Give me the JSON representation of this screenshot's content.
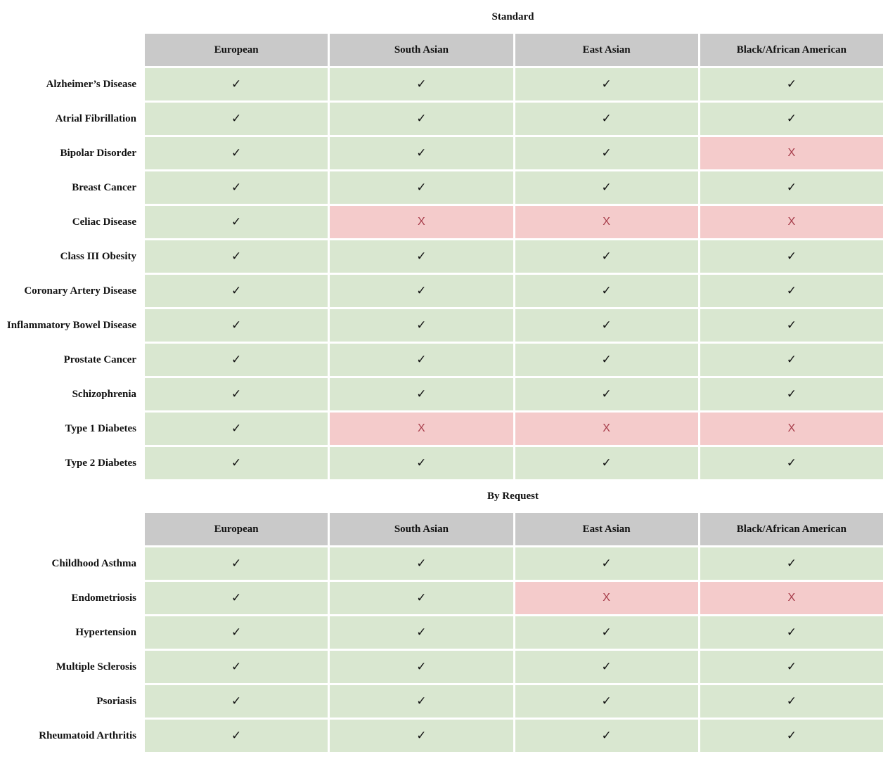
{
  "symbols": {
    "yes": "✓",
    "no": "X"
  },
  "colors": {
    "header_bg": "#c9c9c9",
    "available_bg": "#d9e7d0",
    "unavailable_bg": "#f4cbcb",
    "check_color": "#111111",
    "x_color": "#a73c4a",
    "page_bg": "#ffffff"
  },
  "chart_data": [
    {
      "type": "table",
      "title": "Standard",
      "columns": [
        "European",
        "South Asian",
        "East Asian",
        "Black/African American"
      ],
      "rows": [
        {
          "label": "Alzheimer’s Disease",
          "values": [
            "yes",
            "yes",
            "yes",
            "yes"
          ]
        },
        {
          "label": "Atrial Fibrillation",
          "values": [
            "yes",
            "yes",
            "yes",
            "yes"
          ]
        },
        {
          "label": "Bipolar Disorder",
          "values": [
            "yes",
            "yes",
            "yes",
            "no"
          ]
        },
        {
          "label": "Breast Cancer",
          "values": [
            "yes",
            "yes",
            "yes",
            "yes"
          ]
        },
        {
          "label": "Celiac Disease",
          "values": [
            "yes",
            "no",
            "no",
            "no"
          ]
        },
        {
          "label": "Class III Obesity",
          "values": [
            "yes",
            "yes",
            "yes",
            "yes"
          ]
        },
        {
          "label": "Coronary Artery Disease",
          "values": [
            "yes",
            "yes",
            "yes",
            "yes"
          ]
        },
        {
          "label": "Inflammatory Bowel Disease",
          "values": [
            "yes",
            "yes",
            "yes",
            "yes"
          ]
        },
        {
          "label": "Prostate Cancer",
          "values": [
            "yes",
            "yes",
            "yes",
            "yes"
          ]
        },
        {
          "label": "Schizophrenia",
          "values": [
            "yes",
            "yes",
            "yes",
            "yes"
          ]
        },
        {
          "label": "Type 1 Diabetes",
          "values": [
            "yes",
            "no",
            "no",
            "no"
          ]
        },
        {
          "label": "Type 2 Diabetes",
          "values": [
            "yes",
            "yes",
            "yes",
            "yes"
          ]
        }
      ]
    },
    {
      "type": "table",
      "title": "By Request",
      "columns": [
        "European",
        "South Asian",
        "East Asian",
        "Black/African American"
      ],
      "rows": [
        {
          "label": "Childhood Asthma",
          "values": [
            "yes",
            "yes",
            "yes",
            "yes"
          ]
        },
        {
          "label": "Endometriosis",
          "values": [
            "yes",
            "yes",
            "no",
            "no"
          ]
        },
        {
          "label": "Hypertension",
          "values": [
            "yes",
            "yes",
            "yes",
            "yes"
          ]
        },
        {
          "label": "Multiple Sclerosis",
          "values": [
            "yes",
            "yes",
            "yes",
            "yes"
          ]
        },
        {
          "label": "Psoriasis",
          "values": [
            "yes",
            "yes",
            "yes",
            "yes"
          ]
        },
        {
          "label": "Rheumatoid Arthritis",
          "values": [
            "yes",
            "yes",
            "yes",
            "yes"
          ]
        }
      ]
    }
  ]
}
